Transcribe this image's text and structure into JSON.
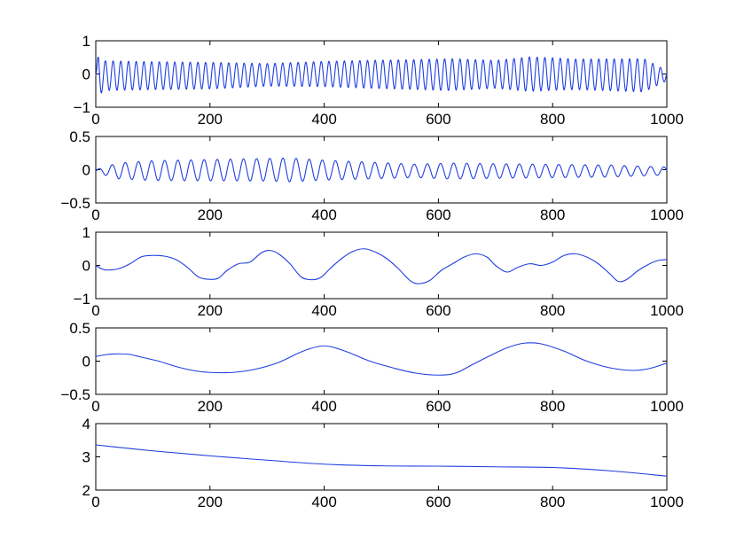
{
  "figure": {
    "line_color": "#1f3fe0",
    "grid": false
  },
  "chart_data": [
    {
      "type": "line",
      "title": "",
      "xlabel": "",
      "ylabel": "",
      "xlim": [
        0,
        1000
      ],
      "ylim": [
        -1,
        1
      ],
      "xticks": [
        0,
        200,
        400,
        600,
        800,
        1000
      ],
      "yticks": [
        -1,
        0,
        1
      ],
      "xtick_labels": [
        "0",
        "200",
        "400",
        "600",
        "800",
        "1000"
      ],
      "ytick_labels": [
        "−1",
        "0",
        "1"
      ],
      "series": [
        {
          "pattern": "oscillation",
          "period": 13.5,
          "envelope": [
            [
              0,
              0.12
            ],
            [
              5,
              0.7
            ],
            [
              12,
              0.45
            ],
            [
              100,
              0.42
            ],
            [
              200,
              0.4
            ],
            [
              300,
              0.34
            ],
            [
              400,
              0.38
            ],
            [
              480,
              0.42
            ],
            [
              560,
              0.45
            ],
            [
              620,
              0.48
            ],
            [
              700,
              0.42
            ],
            [
              760,
              0.52
            ],
            [
              840,
              0.46
            ],
            [
              900,
              0.48
            ],
            [
              960,
              0.5
            ],
            [
              1000,
              0.15
            ]
          ],
          "offset": [
            [
              0,
              -0.05
            ],
            [
              200,
              -0.05
            ],
            [
              400,
              0.0
            ],
            [
              600,
              -0.02
            ],
            [
              800,
              0.0
            ],
            [
              1000,
              -0.05
            ]
          ]
        }
      ]
    },
    {
      "type": "line",
      "title": "",
      "xlabel": "",
      "ylabel": "",
      "xlim": [
        0,
        1000
      ],
      "ylim": [
        -0.5,
        0.5
      ],
      "xticks": [
        0,
        200,
        400,
        600,
        800,
        1000
      ],
      "yticks": [
        -0.5,
        0,
        0.5
      ],
      "xtick_labels": [
        "0",
        "200",
        "400",
        "600",
        "800",
        "1000"
      ],
      "ytick_labels": [
        "−0.5",
        "0",
        "0.5"
      ],
      "series": [
        {
          "pattern": "oscillation",
          "period": 23,
          "envelope": [
            [
              0,
              0.02
            ],
            [
              15,
              0.06
            ],
            [
              40,
              0.12
            ],
            [
              100,
              0.15
            ],
            [
              200,
              0.16
            ],
            [
              300,
              0.17
            ],
            [
              340,
              0.18
            ],
            [
              400,
              0.15
            ],
            [
              500,
              0.12
            ],
            [
              560,
              0.1
            ],
            [
              620,
              0.12
            ],
            [
              700,
              0.11
            ],
            [
              800,
              0.1
            ],
            [
              900,
              0.09
            ],
            [
              1000,
              0.06
            ]
          ],
          "offset": [
            [
              0,
              -0.02
            ],
            [
              300,
              0.0
            ],
            [
              600,
              -0.02
            ],
            [
              1000,
              -0.02
            ]
          ]
        }
      ]
    },
    {
      "type": "line",
      "title": "",
      "xlabel": "",
      "ylabel": "",
      "xlim": [
        0,
        1000
      ],
      "ylim": [
        -1,
        1
      ],
      "xticks": [
        0,
        200,
        400,
        600,
        800,
        1000
      ],
      "yticks": [
        -1,
        0,
        1
      ],
      "xtick_labels": [
        "0",
        "200",
        "400",
        "600",
        "800",
        "1000"
      ],
      "ytick_labels": [
        "−1",
        "0",
        "1"
      ],
      "series": [
        {
          "pattern": "points",
          "points": [
            [
              0,
              0.0
            ],
            [
              10,
              -0.1
            ],
            [
              20,
              -0.14
            ],
            [
              40,
              -0.1
            ],
            [
              60,
              0.05
            ],
            [
              80,
              0.26
            ],
            [
              100,
              0.3
            ],
            [
              120,
              0.28
            ],
            [
              140,
              0.18
            ],
            [
              160,
              -0.05
            ],
            [
              180,
              -0.35
            ],
            [
              200,
              -0.42
            ],
            [
              215,
              -0.38
            ],
            [
              230,
              -0.15
            ],
            [
              250,
              0.05
            ],
            [
              270,
              0.1
            ],
            [
              290,
              0.38
            ],
            [
              305,
              0.45
            ],
            [
              320,
              0.35
            ],
            [
              340,
              0.05
            ],
            [
              360,
              -0.35
            ],
            [
              380,
              -0.43
            ],
            [
              395,
              -0.35
            ],
            [
              410,
              -0.1
            ],
            [
              430,
              0.2
            ],
            [
              450,
              0.42
            ],
            [
              470,
              0.5
            ],
            [
              490,
              0.4
            ],
            [
              510,
              0.2
            ],
            [
              530,
              -0.1
            ],
            [
              550,
              -0.45
            ],
            [
              565,
              -0.55
            ],
            [
              585,
              -0.45
            ],
            [
              605,
              -0.15
            ],
            [
              625,
              0.05
            ],
            [
              645,
              0.25
            ],
            [
              665,
              0.35
            ],
            [
              685,
              0.25
            ],
            [
              700,
              0.0
            ],
            [
              720,
              -0.2
            ],
            [
              740,
              -0.05
            ],
            [
              760,
              0.05
            ],
            [
              780,
              0.0
            ],
            [
              800,
              0.1
            ],
            [
              820,
              0.3
            ],
            [
              840,
              0.35
            ],
            [
              860,
              0.25
            ],
            [
              880,
              0.05
            ],
            [
              900,
              -0.25
            ],
            [
              915,
              -0.48
            ],
            [
              930,
              -0.42
            ],
            [
              950,
              -0.15
            ],
            [
              970,
              0.05
            ],
            [
              985,
              0.15
            ],
            [
              1000,
              0.18
            ]
          ]
        }
      ]
    },
    {
      "type": "line",
      "title": "",
      "xlabel": "",
      "ylabel": "",
      "xlim": [
        0,
        1000
      ],
      "ylim": [
        -0.5,
        0.5
      ],
      "xticks": [
        0,
        200,
        400,
        600,
        800,
        1000
      ],
      "yticks": [
        -0.5,
        0,
        0.5
      ],
      "xtick_labels": [
        "0",
        "200",
        "400",
        "600",
        "800",
        "1000"
      ],
      "ytick_labels": [
        "−0.5",
        "0",
        "0.5"
      ],
      "series": [
        {
          "pattern": "points",
          "points": [
            [
              0,
              0.07
            ],
            [
              20,
              0.1
            ],
            [
              40,
              0.11
            ],
            [
              60,
              0.1
            ],
            [
              80,
              0.06
            ],
            [
              110,
              0.0
            ],
            [
              140,
              -0.08
            ],
            [
              170,
              -0.14
            ],
            [
              200,
              -0.17
            ],
            [
              240,
              -0.17
            ],
            [
              280,
              -0.12
            ],
            [
              320,
              -0.02
            ],
            [
              360,
              0.14
            ],
            [
              390,
              0.22
            ],
            [
              410,
              0.22
            ],
            [
              440,
              0.14
            ],
            [
              480,
              0.0
            ],
            [
              520,
              -0.1
            ],
            [
              560,
              -0.18
            ],
            [
              600,
              -0.21
            ],
            [
              630,
              -0.18
            ],
            [
              660,
              -0.05
            ],
            [
              690,
              0.08
            ],
            [
              720,
              0.2
            ],
            [
              750,
              0.27
            ],
            [
              780,
              0.26
            ],
            [
              820,
              0.15
            ],
            [
              860,
              0.0
            ],
            [
              900,
              -0.1
            ],
            [
              940,
              -0.14
            ],
            [
              970,
              -0.11
            ],
            [
              1000,
              -0.03
            ]
          ]
        }
      ]
    },
    {
      "type": "line",
      "title": "",
      "xlabel": "",
      "ylabel": "",
      "xlim": [
        0,
        1000
      ],
      "ylim": [
        2,
        4
      ],
      "xticks": [
        0,
        200,
        400,
        600,
        800,
        1000
      ],
      "yticks": [
        2,
        3,
        4
      ],
      "xtick_labels": [
        "0",
        "200",
        "400",
        "600",
        "800",
        "1000"
      ],
      "ytick_labels": [
        "2",
        "3",
        "4"
      ],
      "series": [
        {
          "pattern": "points",
          "points": [
            [
              0,
              3.36
            ],
            [
              100,
              3.18
            ],
            [
              200,
              3.03
            ],
            [
              300,
              2.9
            ],
            [
              400,
              2.78
            ],
            [
              500,
              2.73
            ],
            [
              600,
              2.72
            ],
            [
              700,
              2.7
            ],
            [
              800,
              2.68
            ],
            [
              900,
              2.58
            ],
            [
              1000,
              2.42
            ]
          ]
        }
      ]
    }
  ]
}
